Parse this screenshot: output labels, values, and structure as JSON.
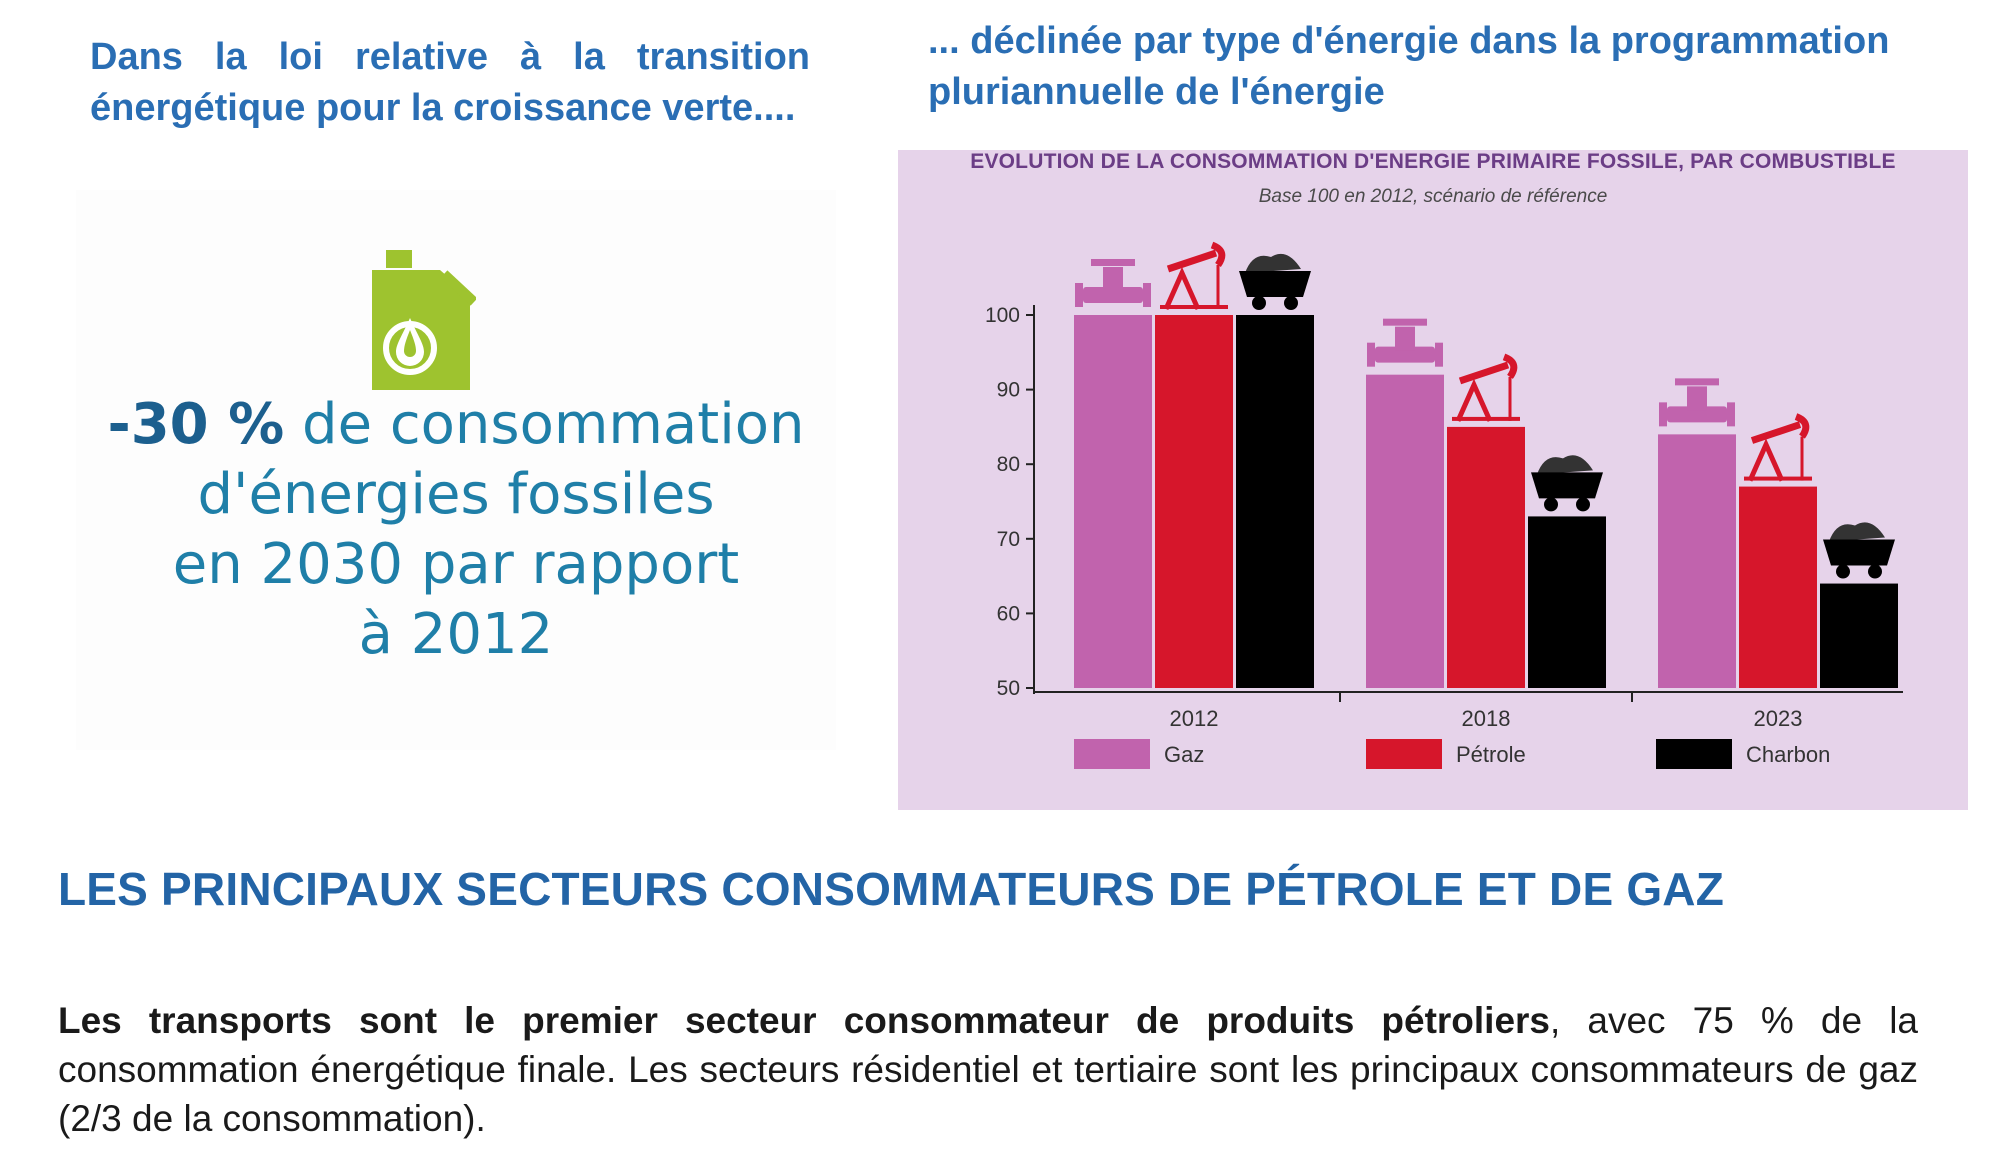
{
  "left_heading": "Dans la loi relative à la transition énergétique pour la croissance verte....",
  "right_heading": "... déclinée par type d'énergie dans la programmation pluriannuelle de l'énergie",
  "infographic": {
    "icon": "fuel-canister-icon",
    "stat_highlight": "-30 %",
    "stat_line1_rest": " de consommation",
    "stat_line2": "d'énergies fossiles",
    "stat_line3": "en 2030 par rapport",
    "stat_line4": "à 2012",
    "icon_color": "#9ec32f"
  },
  "chart_data": {
    "type": "bar",
    "title": "EVOLUTION DE LA CONSOMMATION D'ENERGIE PRIMAIRE FOSSILE, PAR COMBUSTIBLE",
    "subtitle": "Base 100 en 2012, scénario de référence",
    "categories": [
      "2012",
      "2018",
      "2023"
    ],
    "series": [
      {
        "name": "Gaz",
        "color": "#c163ad",
        "icon": "gas-valve-icon",
        "values": [
          100,
          92,
          84
        ]
      },
      {
        "name": "Pétrole",
        "color": "#d6162b",
        "icon": "oil-pump-icon",
        "values": [
          100,
          85,
          77
        ]
      },
      {
        "name": "Charbon",
        "color": "#000000",
        "icon": "coal-cart-icon",
        "values": [
          100,
          73,
          64
        ]
      }
    ],
    "ylim": [
      50,
      100
    ],
    "yticks": [
      50,
      60,
      70,
      80,
      90,
      100
    ],
    "grid": false,
    "legend": "bottom"
  },
  "section_title": "LES PRINCIPAUX SECTEURS CONSOMMATEURS DE PÉTROLE ET DE GAZ",
  "body": {
    "bold": "Les transports sont le premier secteur consommateur de produits pétroliers",
    "rest": ", avec 75 % de la consommation énergétique finale. Les secteurs résidentiel et tertiaire sont les principaux consommateurs de gaz (2/3 de la consommation)."
  }
}
